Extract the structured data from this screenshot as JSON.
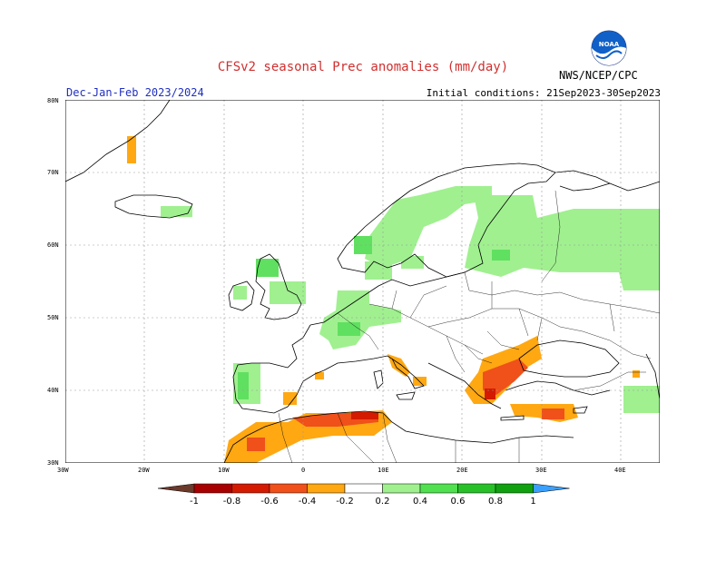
{
  "header": {
    "title": "CFSv2 seasonal Prec anomalies (mm/day)",
    "season": "Dec-Jan-Feb 2023/2024",
    "init": "Initial conditions: 21Sep2023-30Sep2023",
    "agency": "NWS/NCEP/CPC",
    "logo_text": "NOAA"
  },
  "axes": {
    "lat_labels": [
      "80N",
      "70N",
      "60N",
      "50N",
      "40N",
      "30N"
    ],
    "lon_labels": [
      "30W",
      "20W",
      "10W",
      "0",
      "10E",
      "20E",
      "30E",
      "40E"
    ]
  },
  "colorbar": {
    "labels": [
      "-1",
      "-0.8",
      "-0.6",
      "-0.4",
      "-0.2",
      "0.2",
      "0.4",
      "0.6",
      "0.8",
      "1"
    ],
    "colors": [
      "#6b3a2a",
      "#a80000",
      "#d41a00",
      "#f0501a",
      "#ffa812",
      "#ffffff",
      "#a0f090",
      "#50e050",
      "#28c028",
      "#10a010",
      "#3aa0ff"
    ]
  },
  "colors": {
    "ocean_bg": "#ffffff",
    "light_green": "#a0f090",
    "green": "#60e060",
    "orange": "#ffa812",
    "red_orange": "#f0501a",
    "red": "#d41a00",
    "grid": "#999999"
  }
}
